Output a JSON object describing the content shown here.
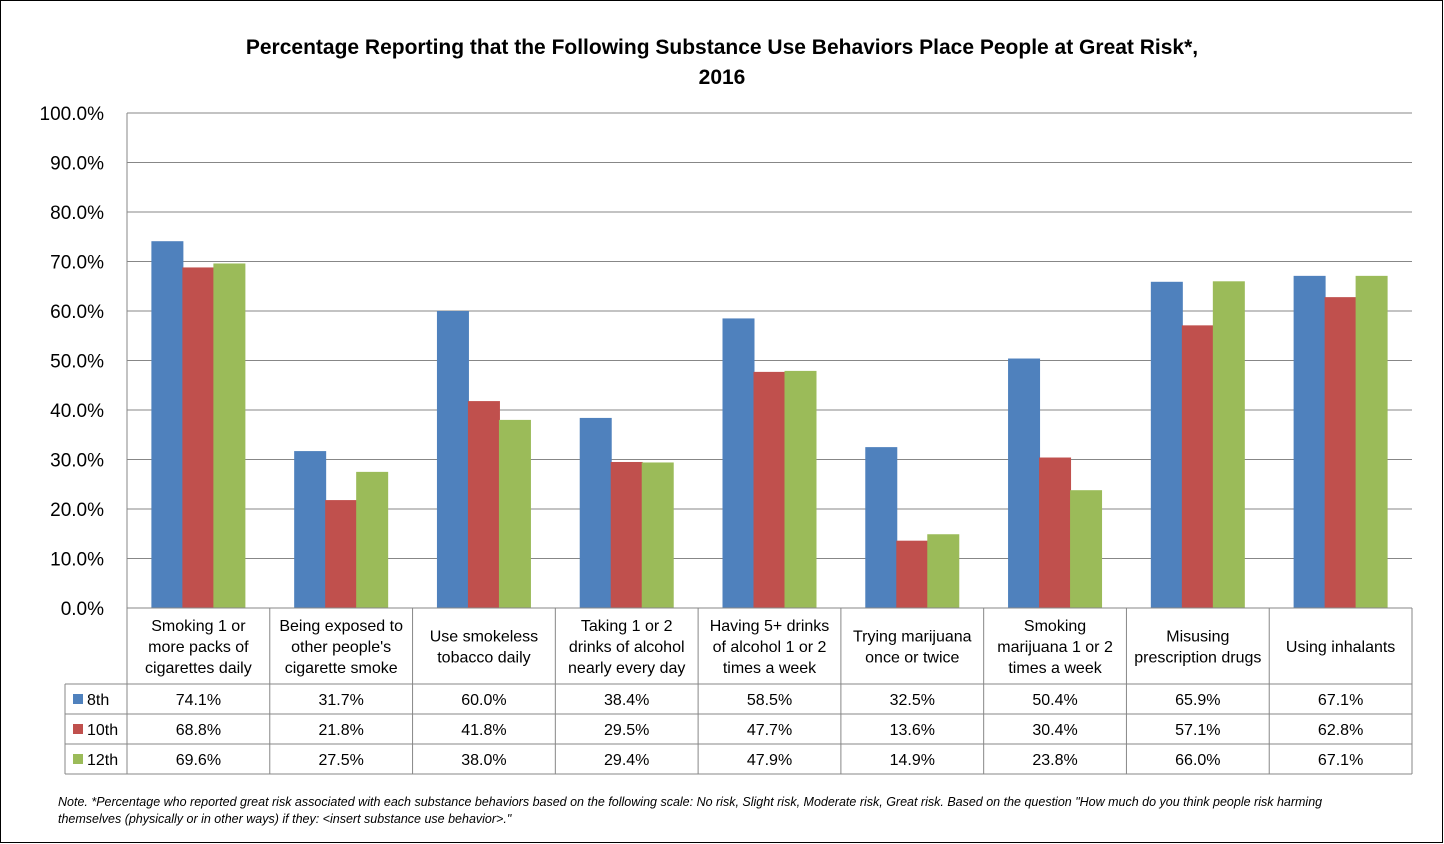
{
  "chart_data": {
    "type": "bar",
    "title_line1": "Percentage Reporting that the Following Substance Use Behaviors Place People at Great Risk*,",
    "title_line2": "2016",
    "categories": [
      [
        "Smoking 1 or",
        "more packs of",
        "cigarettes daily"
      ],
      [
        "Being exposed to",
        "other people's",
        "cigarette smoke"
      ],
      [
        "Use smokeless",
        "tobacco daily"
      ],
      [
        "Taking 1 or 2",
        "drinks of alcohol",
        "nearly every day"
      ],
      [
        "Having 5+ drinks",
        "of alcohol 1 or 2",
        "times a week"
      ],
      [
        "Trying marijuana",
        "once or twice"
      ],
      [
        "Smoking",
        "marijuana 1 or 2",
        "times a week"
      ],
      [
        "Misusing",
        "prescription drugs"
      ],
      [
        "Using inhalants"
      ]
    ],
    "series": [
      {
        "name": "8th",
        "color": "#4f81bd",
        "values": [
          74.1,
          31.7,
          60.0,
          38.4,
          58.5,
          32.5,
          50.4,
          65.9,
          67.1
        ],
        "labels": [
          "74.1%",
          "31.7%",
          "60.0%",
          "38.4%",
          "58.5%",
          "32.5%",
          "50.4%",
          "65.9%",
          "67.1%"
        ]
      },
      {
        "name": "10th",
        "color": "#c0504d",
        "values": [
          68.8,
          21.8,
          41.8,
          29.5,
          47.7,
          13.6,
          30.4,
          57.1,
          62.8
        ],
        "labels": [
          "68.8%",
          "21.8%",
          "41.8%",
          "29.5%",
          "47.7%",
          "13.6%",
          "30.4%",
          "57.1%",
          "62.8%"
        ]
      },
      {
        "name": "12th",
        "color": "#9bbb59",
        "values": [
          69.6,
          27.5,
          38.0,
          29.4,
          47.9,
          14.9,
          23.8,
          66.0,
          67.1
        ],
        "labels": [
          "69.6%",
          "27.5%",
          "38.0%",
          "29.4%",
          "47.9%",
          "14.9%",
          "23.8%",
          "66.0%",
          "67.1%"
        ]
      }
    ],
    "ylim": [
      0,
      100
    ],
    "yticks": [
      "0.0%",
      "10.0%",
      "20.0%",
      "30.0%",
      "40.0%",
      "50.0%",
      "60.0%",
      "70.0%",
      "80.0%",
      "90.0%",
      "100.0%"
    ],
    "grid": true,
    "legend": "data-table"
  },
  "note": "Note. *Percentage who reported great risk associated with each substance behaviors based on the following scale: No risk, Slight risk, Moderate risk, Great risk.  Based on the question \"How much do you think people risk harming themselves (physically or in other ways) if they: <insert substance use behavior>.\""
}
